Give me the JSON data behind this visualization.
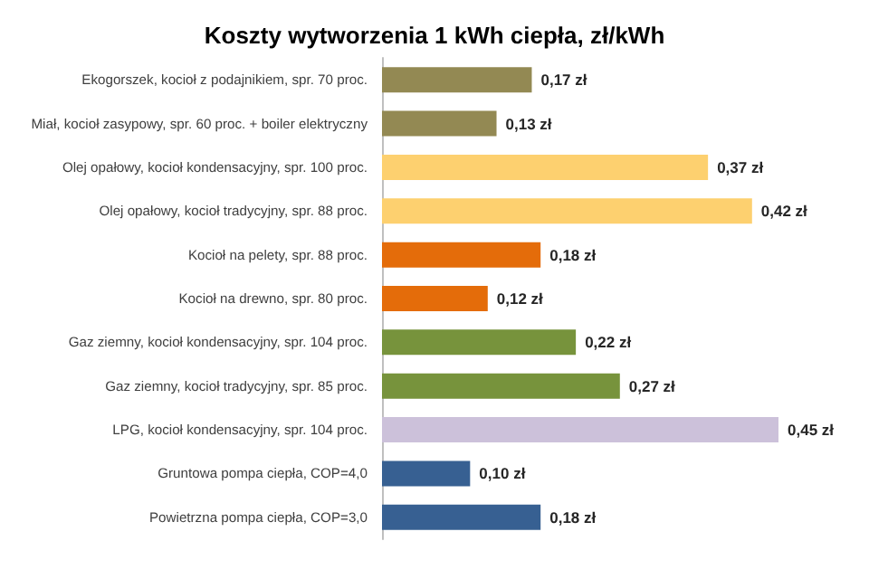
{
  "chart_data": {
    "type": "bar",
    "orientation": "horizontal",
    "title": "Koszty wytworzenia 1 kWh ciepła, zł/kWh",
    "categories": [
      "Ekogorszek, kocioł z podajnikiem, spr. 70 proc.",
      "Miał, kocioł zasypowy, spr. 60 proc. + boiler elektryczny",
      "Olej opałowy, kocioł kondensacyjny, spr. 100 proc.",
      "Olej opałowy, kocioł tradycyjny, spr. 88 proc.",
      "Kocioł na pelety, spr. 88 proc.",
      "Kocioł na drewno, spr. 80 proc.",
      "Gaz ziemny, kocioł kondensacyjny, spr. 104 proc.",
      "Gaz ziemny, kocioł tradycyjny, spr. 85 proc.",
      "LPG, kocioł kondensacyjny, spr. 104 proc.",
      "Gruntowa pompa ciepła, COP=4,0",
      "Powietrzna pompa ciepła, COP=3,0"
    ],
    "values": [
      0.17,
      0.13,
      0.37,
      0.42,
      0.18,
      0.12,
      0.22,
      0.27,
      0.45,
      0.1,
      0.18
    ],
    "value_labels": [
      "0,17 zł",
      "0,13 zł",
      "0,37 zł",
      "0,42 zł",
      "0,18 zł",
      "0,12 zł",
      "0,22 zł",
      "0,27 zł",
      "0,45 zł",
      "0,10 zł",
      "0,18 zł"
    ],
    "colors": [
      "#938953",
      "#938953",
      "#fdd06f",
      "#fdd06f",
      "#e46c0a",
      "#e46c0a",
      "#77933c",
      "#77933c",
      "#ccc1da",
      "#376092",
      "#376092"
    ]
  }
}
